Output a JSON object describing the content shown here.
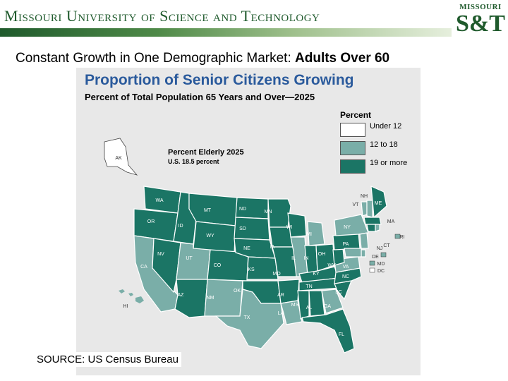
{
  "header": {
    "university": "Missouri University of Science and Technology",
    "logo_top": "MISSOURI",
    "logo_main": "S&T"
  },
  "slide": {
    "title": "Constant Growth in One Demographic Market: ",
    "title_bold": "Adults Over 60",
    "source": "SOURCE: US Census Bureau"
  },
  "map": {
    "title": "Proportion of Senior Citizens Growing",
    "subtitle": "Percent of Total Population 65 Years and Over—2025",
    "inset_title": "Percent Elderly 2025",
    "inset_sub": "U.S. 18.5 percent",
    "legend": {
      "title": "Percent",
      "items": [
        {
          "label": "Under 12",
          "color": "#ffffff"
        },
        {
          "label": "12 to 18",
          "color": "#7aaea8"
        },
        {
          "label": "19 or more",
          "color": "#1b7565"
        }
      ]
    },
    "state_labels": {
      "AK": "AK",
      "HI": "HI",
      "WA": "WA",
      "OR": "OR",
      "CA": "CA",
      "NV": "NV",
      "ID": "ID",
      "MT": "MT",
      "WY": "WY",
      "UT": "UT",
      "AZ": "AZ",
      "CO": "CO",
      "NM": "NM",
      "ND": "ND",
      "SD": "SD",
      "NE": "NE",
      "KS": "KS",
      "OK": "OK",
      "TX": "TX",
      "MN": "MN",
      "IA": "IA",
      "MO": "MO",
      "AR": "AR",
      "LA": "LA",
      "WI": "WI",
      "IL": "IL",
      "MI": "MI",
      "IN": "IN",
      "OH": "OH",
      "KY": "KY",
      "TN": "TN",
      "MS": "MS",
      "AL": "AL",
      "GA": "GA",
      "FL": "FL",
      "SC": "SC",
      "NC": "NC",
      "VA": "VA",
      "WV": "WV",
      "PA": "PA",
      "NY": "NY",
      "VT": "VT",
      "NH": "NH",
      "ME": "ME",
      "MA": "MA",
      "RI": "RI",
      "CT": "CT",
      "NJ": "NJ",
      "DE": "DE",
      "MD": "MD",
      "DC": "DC"
    }
  }
}
